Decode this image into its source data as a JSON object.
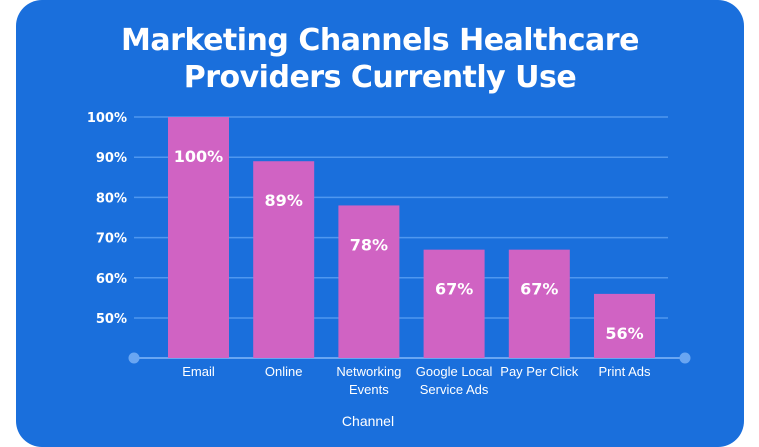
{
  "colors": {
    "background": "#1a6fdc",
    "bar": "#d063c3",
    "gridline": "#4f97ef",
    "axis": "#6aa6f2",
    "text": "#ffffff"
  },
  "chart_data": {
    "type": "bar",
    "title_lines": [
      "Marketing Channels Healthcare",
      "Providers Currently Use"
    ],
    "categories": [
      [
        "Email"
      ],
      [
        "Online"
      ],
      [
        "Networking",
        "Events"
      ],
      [
        "Google Local",
        "Service Ads"
      ],
      [
        "Pay Per Click"
      ],
      [
        "Print Ads"
      ]
    ],
    "values": [
      100,
      89,
      78,
      67,
      67,
      56
    ],
    "data_labels": [
      "100%",
      "89%",
      "78%",
      "67%",
      "67%",
      "56%"
    ],
    "y_ticks": [
      50,
      60,
      70,
      80,
      90,
      100
    ],
    "y_tick_labels": [
      "50%",
      "60%",
      "70%",
      "80%",
      "90%",
      "100%"
    ],
    "ylim": [
      40,
      100
    ],
    "xlabel": "Channel",
    "ylabel": "",
    "grid": true,
    "legend": "none"
  }
}
